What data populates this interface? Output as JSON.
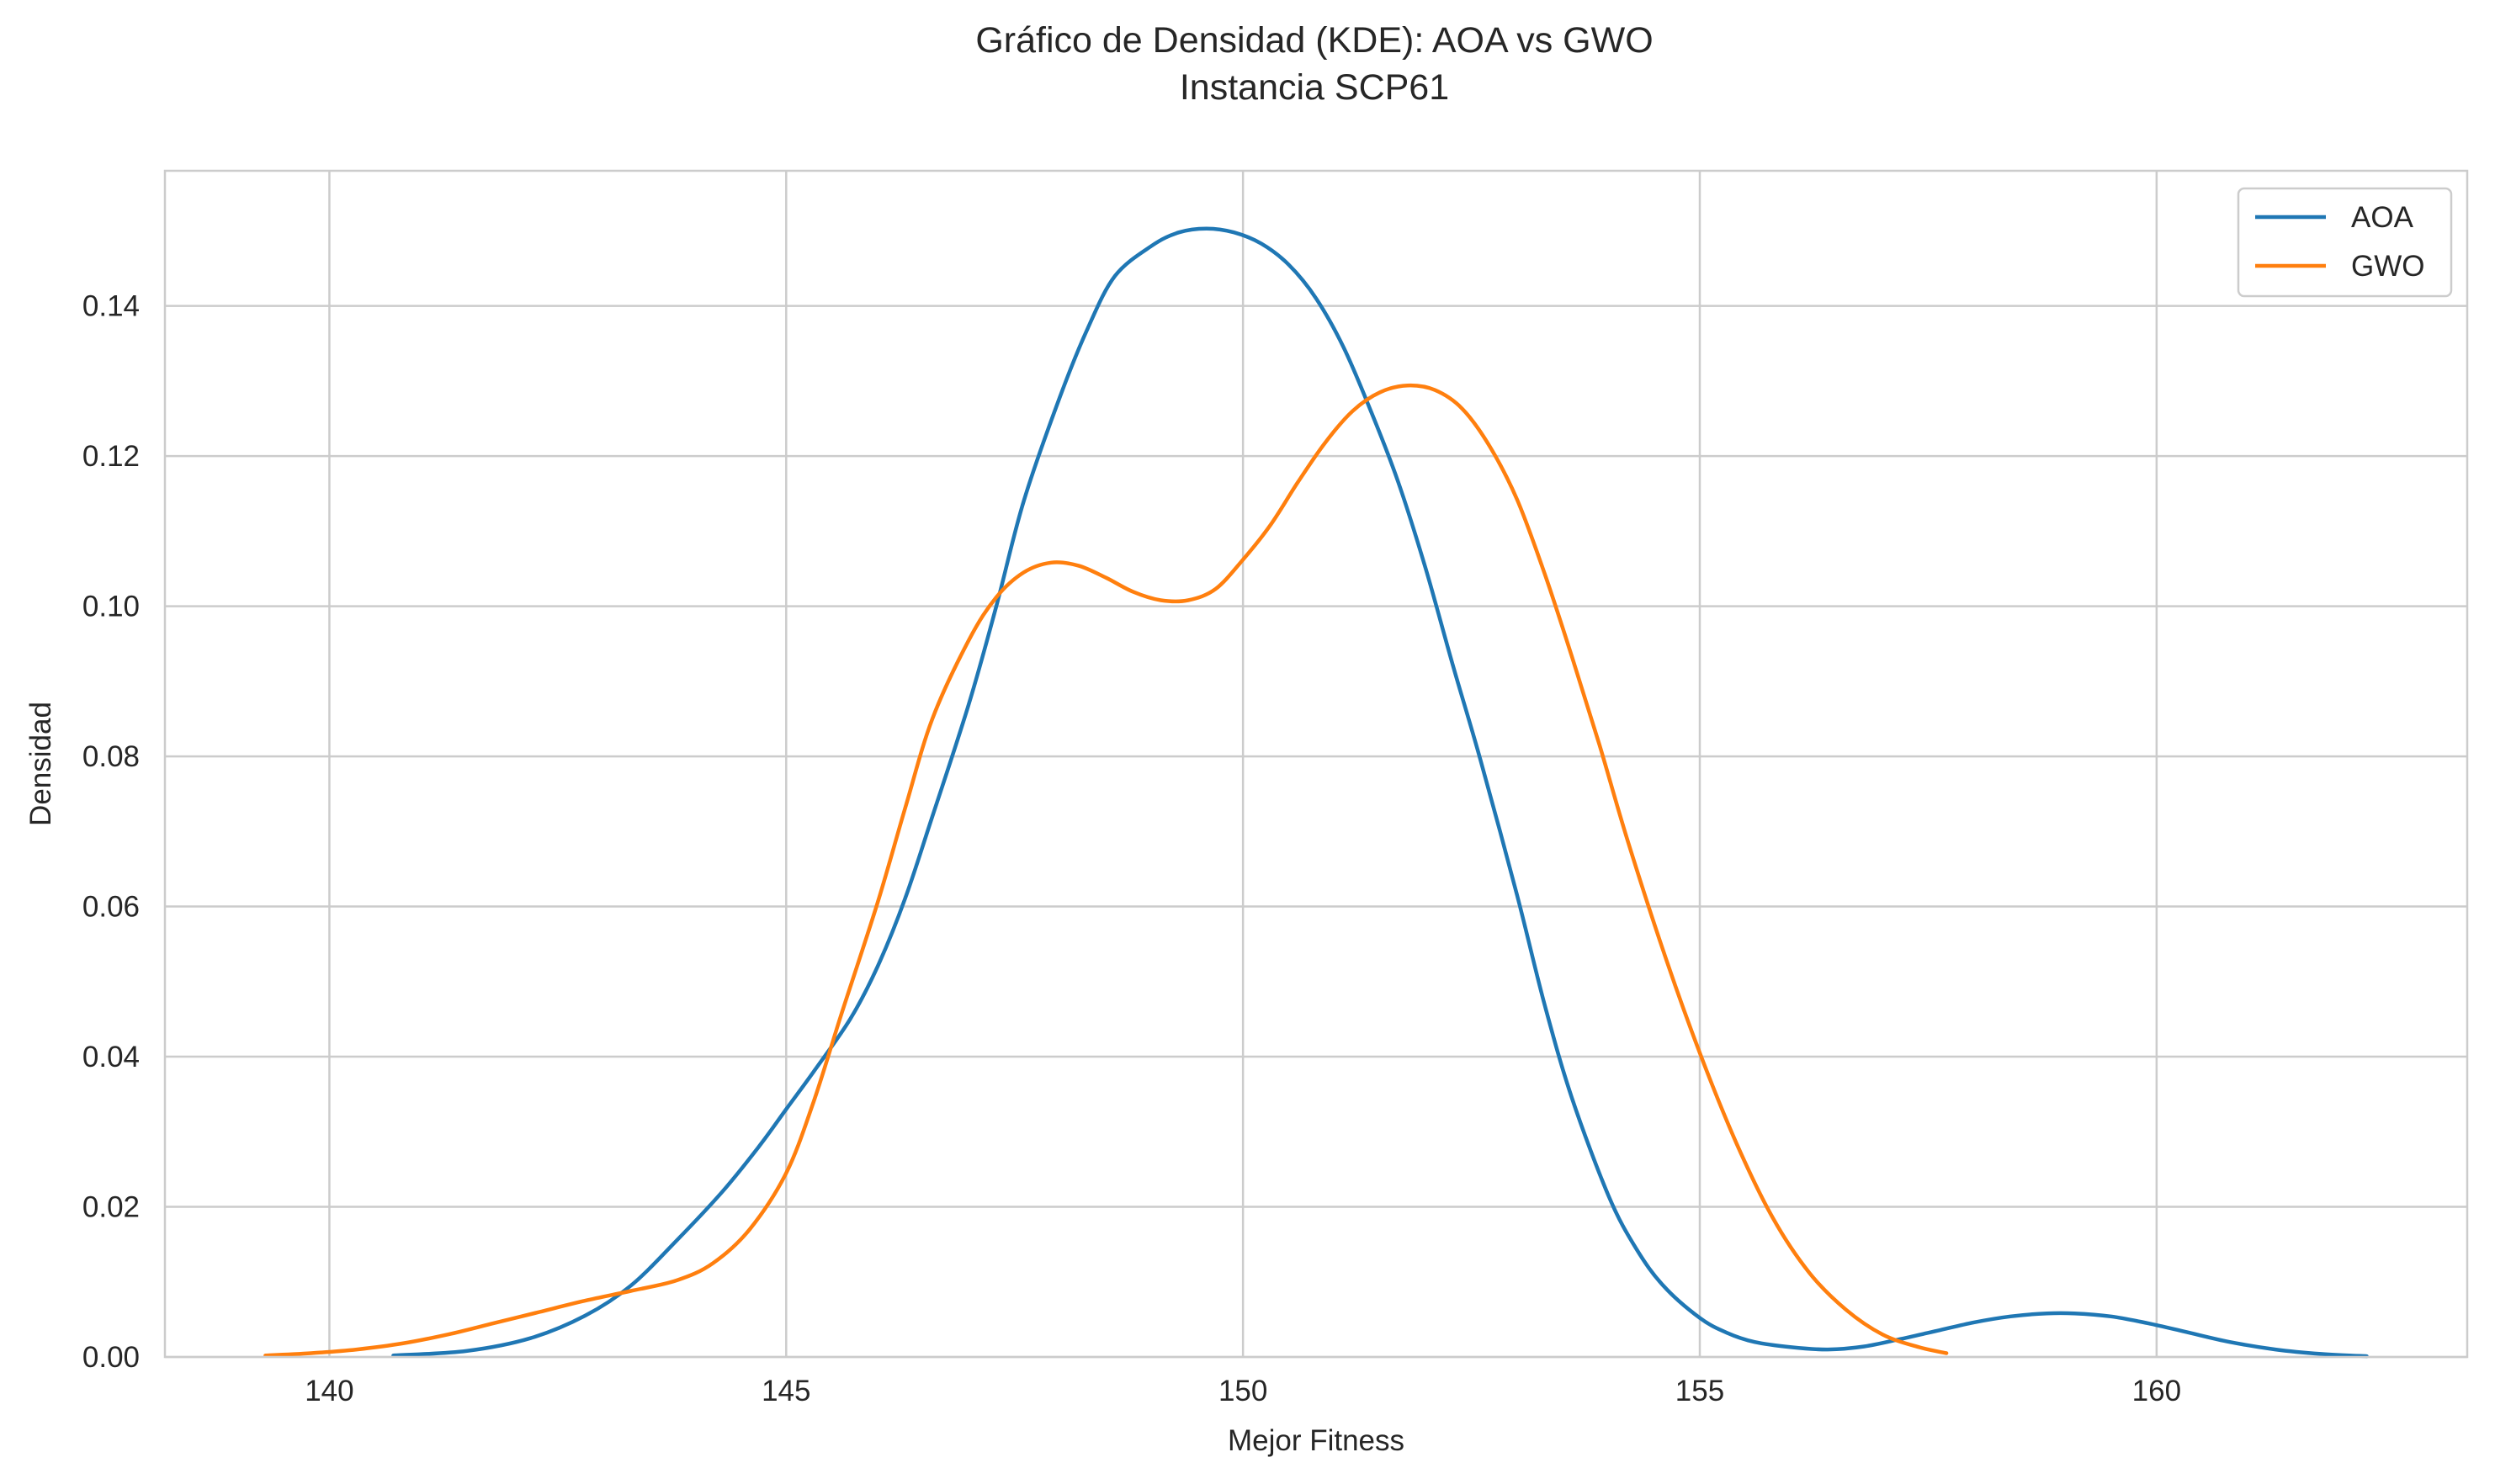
{
  "chart_data": {
    "type": "line",
    "title": "Gráfico de Densidad (KDE): AOA vs GWO",
    "subtitle": "Instancia SCP61",
    "xlabel": "Mejor Fitness",
    "ylabel": "Densidad",
    "xlim": [
      138.2,
      163.4
    ],
    "ylim": [
      0,
      0.158
    ],
    "xticks": [
      140,
      145,
      150,
      155,
      160
    ],
    "xtick_labels": [
      "140",
      "145",
      "150",
      "155",
      "160"
    ],
    "yticks": [
      0,
      0.02,
      0.04,
      0.06,
      0.08,
      0.1,
      0.12,
      0.14
    ],
    "ytick_labels": [
      "0.00",
      "0.02",
      "0.04",
      "0.06",
      "0.08",
      "0.10",
      "0.12",
      "0.14"
    ],
    "grid": true,
    "legend": "top-right",
    "series": [
      {
        "name": "AOA",
        "color": "#1f77b4",
        "x": [
          140.7,
          141.5,
          142.2,
          142.8,
          143.3,
          143.8,
          144.3,
          144.7,
          145.0,
          145.3,
          145.7,
          146.0,
          146.3,
          146.6,
          147.0,
          147.3,
          147.6,
          148.0,
          148.3,
          148.6,
          149.0,
          149.3,
          149.6,
          149.9,
          150.2,
          150.5,
          150.8,
          151.1,
          151.4,
          151.7,
          152.0,
          152.3,
          152.6,
          153.0,
          153.3,
          153.6,
          154.0,
          154.3,
          154.6,
          155.0,
          155.3,
          155.6,
          156.0,
          156.4,
          156.8,
          157.2,
          157.6,
          158.0,
          158.4,
          158.8,
          159.1,
          159.5,
          159.9,
          160.3,
          160.8,
          161.3,
          161.8,
          162.3
        ],
        "values": [
          0.0002,
          0.0008,
          0.0025,
          0.0055,
          0.0095,
          0.0155,
          0.022,
          0.028,
          0.033,
          0.038,
          0.045,
          0.052,
          0.061,
          0.072,
          0.087,
          0.1,
          0.114,
          0.128,
          0.137,
          0.144,
          0.148,
          0.1498,
          0.1503,
          0.1498,
          0.1483,
          0.1455,
          0.141,
          0.1345,
          0.126,
          0.1165,
          0.105,
          0.092,
          0.0795,
          0.0615,
          0.047,
          0.0345,
          0.0215,
          0.0145,
          0.0095,
          0.0052,
          0.0032,
          0.002,
          0.0013,
          0.001,
          0.0014,
          0.0024,
          0.0035,
          0.0046,
          0.0054,
          0.0058,
          0.0058,
          0.0054,
          0.0045,
          0.0034,
          0.002,
          0.001,
          0.0004,
          0.0001
        ]
      },
      {
        "name": "GWO",
        "color": "#ff7f0e",
        "x": [
          139.3,
          139.8,
          140.3,
          140.8,
          141.3,
          141.8,
          142.3,
          142.8,
          143.3,
          143.8,
          144.2,
          144.6,
          145.0,
          145.3,
          145.6,
          146.0,
          146.3,
          146.6,
          147.0,
          147.3,
          147.6,
          147.9,
          148.2,
          148.5,
          148.8,
          149.1,
          149.4,
          149.7,
          150.0,
          150.3,
          150.6,
          150.9,
          151.2,
          151.5,
          151.8,
          152.1,
          152.4,
          152.7,
          153.0,
          153.3,
          153.6,
          153.9,
          154.2,
          154.6,
          155.0,
          155.4,
          155.8,
          156.2,
          156.6,
          157.0,
          157.4,
          157.7
        ],
        "values": [
          0.0002,
          0.0005,
          0.001,
          0.0018,
          0.003,
          0.0045,
          0.006,
          0.0075,
          0.0088,
          0.0102,
          0.0125,
          0.017,
          0.0245,
          0.034,
          0.0455,
          0.0605,
          0.073,
          0.085,
          0.0955,
          0.1012,
          0.1045,
          0.1058,
          0.1054,
          0.1038,
          0.1019,
          0.1008,
          0.1008,
          0.1023,
          0.1062,
          0.1108,
          0.1165,
          0.1218,
          0.126,
          0.1285,
          0.1294,
          0.1288,
          0.1263,
          0.1213,
          0.1142,
          0.1044,
          0.0933,
          0.0816,
          0.0692,
          0.0541,
          0.0405,
          0.0285,
          0.0185,
          0.0112,
          0.0063,
          0.003,
          0.0013,
          0.0005
        ]
      }
    ]
  }
}
